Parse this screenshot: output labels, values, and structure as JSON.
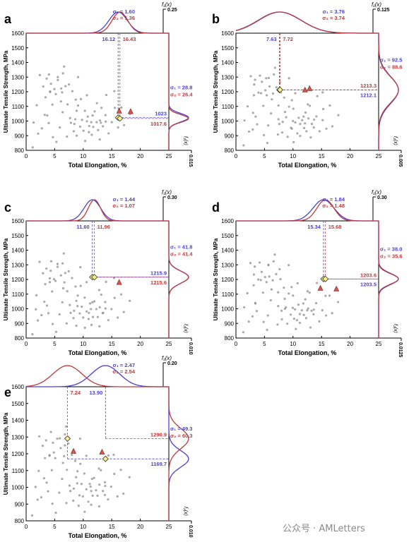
{
  "colors": {
    "blue": "#4b3fd6",
    "red": "#c0393b",
    "scatter": "#8c8c8c",
    "marker_yellow": "#f3f08a",
    "marker_red": "#d9534f",
    "guide": "#8a86d8"
  },
  "common": {
    "xlabel": "Total Elongation, %",
    "ylabel": "Ultimate Tensile Strength, MPa",
    "fx_label": "f₁(x)",
    "fy_label": "f₂(x)",
    "xlim": [
      0,
      25
    ],
    "ylim": [
      800,
      1600
    ],
    "xticks": [
      0,
      5,
      10,
      15,
      20,
      25
    ],
    "yticks": [
      800,
      900,
      1000,
      1100,
      1200,
      1300,
      1400,
      1500,
      1600
    ]
  },
  "watermark": "公众号 · AMLetters",
  "chart_data": [
    {
      "panel": "a",
      "type": "scatter",
      "fx_max": "0.25",
      "fy_max": "0.015",
      "sigma_x": {
        "s1": "σ₁ = 1.60",
        "s2": "σ₂ = 1.36",
        "mu1": 16.12,
        "mu2": 16.43,
        "sd1": 1.6,
        "sd2": 1.36
      },
      "sigma_y": {
        "s1": "σ₁ = 28.8",
        "s2": "σ₂ = 26.4",
        "mu1": 1023,
        "mu2": 1017.6,
        "sd1": 28.8,
        "sd2": 26.4
      },
      "labels": {
        "x1": "16.12",
        "x2": "16.43",
        "y1": "1023",
        "y2": "1017.6"
      },
      "diamonds": [
        [
          16.12,
          1023
        ],
        [
          16.43,
          1017.6
        ]
      ],
      "triangles": [
        [
          16.3,
          1068
        ],
        [
          18.3,
          1065
        ]
      ]
    },
    {
      "panel": "b",
      "type": "scatter",
      "fx_max": "0.125",
      "fy_max": "0.005",
      "sigma_x": {
        "s1": "σ₁ = 3.76",
        "s2": "σ₂ = 3.74",
        "mu1": 7.63,
        "mu2": 7.72,
        "sd1": 3.76,
        "sd2": 3.74
      },
      "sigma_y": {
        "s1": "σ₁ = 92.5",
        "s2": "σ₂ = 88.6",
        "mu1": 1212.1,
        "mu2": 1213.3,
        "sd1": 92.5,
        "sd2": 88.6
      },
      "labels": {
        "x1": "7.63",
        "x2": "7.72",
        "y1": "1212.1",
        "y2": "1213.3"
      },
      "diamonds": [
        [
          7.63,
          1212.1
        ],
        [
          7.72,
          1213.3
        ]
      ],
      "triangles": [
        [
          12.1,
          1212
        ],
        [
          12.9,
          1222
        ]
      ]
    },
    {
      "panel": "c",
      "type": "scatter",
      "fx_max": "0.30",
      "fy_max": "0.010",
      "sigma_x": {
        "s1": "σ₁ = 1.44",
        "s2": "σ₂ = 1.07",
        "mu1": 11.6,
        "mu2": 11.96,
        "sd1": 1.44,
        "sd2": 1.07
      },
      "sigma_y": {
        "s1": "σ₁ = 41.8",
        "s2": "σ₂ = 41.4",
        "mu1": 1215.9,
        "mu2": 1215.6,
        "sd1": 41.8,
        "sd2": 41.4
      },
      "labels": {
        "x1": "11.60",
        "x2": "11.96",
        "y1": "1215.9",
        "y2": "1215.6"
      },
      "diamonds": [
        [
          11.6,
          1215.9
        ],
        [
          11.96,
          1215.6
        ]
      ],
      "triangles": [
        [
          16.3,
          1180
        ]
      ]
    },
    {
      "panel": "d",
      "type": "scatter",
      "fx_max": "0.30",
      "fy_max": "0.0125",
      "sigma_x": {
        "s1": "σ₁ = 1.84",
        "s2": "σ₂ = 1.48",
        "mu1": 15.34,
        "mu2": 15.68,
        "sd1": 1.84,
        "sd2": 1.48
      },
      "sigma_y": {
        "s1": "σ₁ = 38.0",
        "s2": "σ₂ = 35.6",
        "mu1": 1203.5,
        "mu2": 1203.6,
        "sd1": 38.0,
        "sd2": 35.6
      },
      "labels": {
        "x1": "15.34",
        "x2": "15.68",
        "y1": "1203.5",
        "y2": "1203.6"
      },
      "diamonds": [
        [
          15.34,
          1203.5
        ],
        [
          15.68,
          1203.6
        ]
      ],
      "triangles": [
        [
          14.8,
          1140
        ],
        [
          17.6,
          1135
        ]
      ]
    },
    {
      "panel": "e",
      "type": "scatter",
      "fx_max": "0.20",
      "fy_max": "0.010",
      "sigma_x": {
        "s1": "σ₁ = 2.47",
        "s2": "σ₂ = 2.54",
        "mu1": 13.9,
        "mu2": 7.24,
        "sd1": 2.47,
        "sd2": 2.54
      },
      "sigma_y": {
        "s1": "σ₁ = 49.3",
        "s2": "σ₂ = 60.3",
        "mu1": 1169.7,
        "mu2": 1290.9,
        "sd1": 49.3,
        "sd2": 60.3
      },
      "labels": {
        "x1": "13.90",
        "x2": "7.24",
        "y1": "1169.7",
        "y2": "1290.9"
      },
      "diamonds": [
        [
          7.24,
          1290.9
        ],
        [
          13.9,
          1169.7
        ]
      ],
      "triangles": [
        [
          8.3,
          1215
        ],
        [
          13.3,
          1210
        ]
      ]
    }
  ],
  "scatter_points": [
    [
      1.5,
      1000
    ],
    [
      2.0,
      1100
    ],
    [
      2.5,
      1310
    ],
    [
      2.8,
      950
    ],
    [
      3.0,
      1240
    ],
    [
      3.2,
      1050
    ],
    [
      3.5,
      1280
    ],
    [
      3.8,
      980
    ],
    [
      4.0,
      1200
    ],
    [
      4.2,
      1320
    ],
    [
      4.5,
      1260
    ],
    [
      4.8,
      900
    ],
    [
      5.0,
      1210
    ],
    [
      5.2,
      1180
    ],
    [
      5.5,
      1300
    ],
    [
      5.8,
      960
    ],
    [
      6.0,
      1230
    ],
    [
      6.2,
      1050
    ],
    [
      6.5,
      1190
    ],
    [
      6.8,
      1370
    ],
    [
      7.0,
      1240
    ],
    [
      7.2,
      900
    ],
    [
      7.5,
      1260
    ],
    [
      7.8,
      980
    ],
    [
      8.0,
      1200
    ],
    [
      8.2,
      930
    ],
    [
      8.5,
      1150
    ],
    [
      8.8,
      1020
    ],
    [
      9.0,
      890
    ],
    [
      9.2,
      1100
    ],
    [
      9.5,
      960
    ],
    [
      9.8,
      1010
    ],
    [
      10.0,
      940
    ],
    [
      10.2,
      1080
    ],
    [
      10.5,
      990
    ],
    [
      10.8,
      920
    ],
    [
      11.0,
      1030
    ],
    [
      11.2,
      970
    ],
    [
      11.5,
      1000
    ],
    [
      11.8,
      950
    ],
    [
      12.0,
      1060
    ],
    [
      12.3,
      990
    ],
    [
      12.5,
      940
    ],
    [
      12.8,
      1010
    ],
    [
      13.0,
      1100
    ],
    [
      13.3,
      980
    ],
    [
      13.6,
      960
    ],
    [
      14.0,
      1040
    ],
    [
      14.5,
      920
    ],
    [
      15.0,
      1000
    ],
    [
      15.5,
      1080
    ],
    [
      16.0,
      950
    ],
    [
      17.0,
      970
    ],
    [
      18.0,
      1050
    ],
    [
      6.3,
      1140
    ],
    [
      5.7,
      1290
    ],
    [
      4.3,
      1190
    ],
    [
      7.3,
      1110
    ],
    [
      9.6,
      1150
    ],
    [
      10.6,
      1180
    ],
    [
      3.3,
      1170
    ],
    [
      8.7,
      1060
    ],
    [
      11.3,
      900
    ],
    [
      12.6,
      1120
    ],
    [
      14.2,
      1180
    ],
    [
      2.2,
      920
    ],
    [
      1.2,
      830
    ],
    [
      5.3,
      850
    ],
    [
      10.3,
      860
    ],
    [
      7.6,
      1020
    ],
    [
      13.8,
      1000
    ],
    [
      16.5,
      1100
    ],
    [
      9.3,
      1290
    ],
    [
      6.6,
      1320
    ],
    [
      4.7,
      1110
    ],
    [
      11.7,
      1040
    ],
    [
      12.9,
      880
    ],
    [
      8.4,
      990
    ],
    [
      3.6,
      1030
    ],
    [
      15.3,
      1200
    ]
  ]
}
